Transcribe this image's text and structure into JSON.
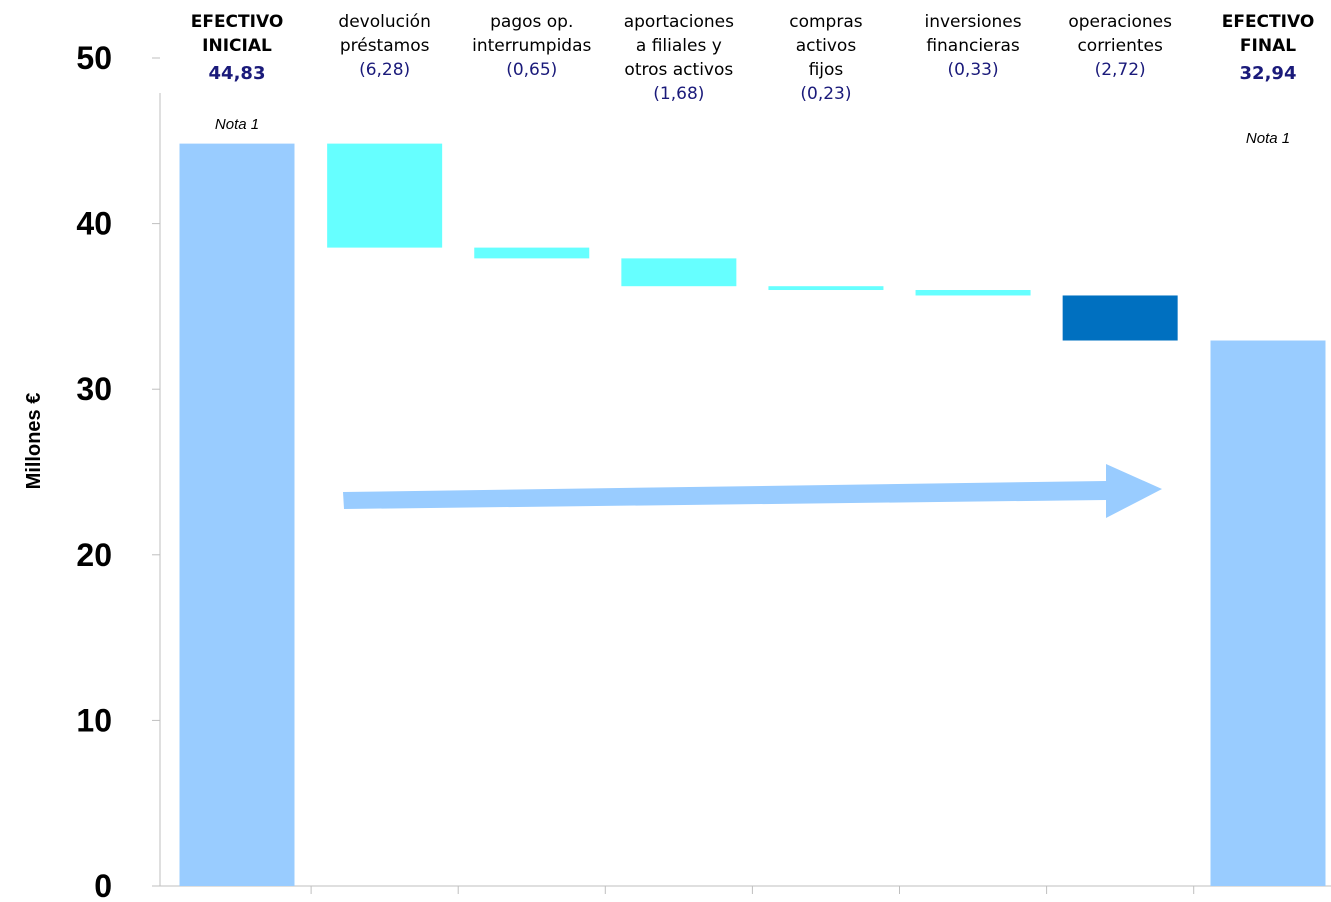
{
  "chart_data": {
    "type": "bar",
    "subtype": "waterfall",
    "ylabel": "Millones €",
    "ylim": [
      0,
      50
    ],
    "yticks": [
      "0",
      "10",
      "20",
      "30",
      "40",
      "50"
    ],
    "grid": false,
    "legend": "none",
    "categories": [
      {
        "lines": [
          "EFECTIVO",
          "INICIAL"
        ],
        "bold": true,
        "value_label": "44,83",
        "note": "Nota 1",
        "kind": "total",
        "value": 44.83
      },
      {
        "lines": [
          "devolución",
          "préstamos"
        ],
        "bold": false,
        "value_label": "(6,28)",
        "kind": "decrease",
        "value": -6.28
      },
      {
        "lines": [
          "pagos op.",
          "interrumpidas"
        ],
        "bold": false,
        "value_label": "(0,65)",
        "kind": "decrease",
        "value": -0.65
      },
      {
        "lines": [
          "aportaciones",
          "a filiales y",
          "otros activos"
        ],
        "bold": false,
        "value_label": "(1,68)",
        "kind": "decrease",
        "value": -1.68
      },
      {
        "lines": [
          "compras",
          "activos",
          "fijos"
        ],
        "bold": false,
        "value_label": "(0,23)",
        "kind": "decrease",
        "value": -0.23
      },
      {
        "lines": [
          "inversiones",
          "financieras"
        ],
        "bold": false,
        "value_label": "(0,33)",
        "kind": "decrease",
        "value": -0.33
      },
      {
        "lines": [
          "operaciones",
          "corrientes"
        ],
        "bold": false,
        "value_label": "(2,72)",
        "kind": "decrease",
        "value": -2.72,
        "highlight": true
      },
      {
        "lines": [
          "EFECTIVO",
          "FINAL"
        ],
        "bold": true,
        "value_label": "32,94",
        "note": "Nota 1",
        "kind": "total",
        "value": 32.94
      }
    ],
    "colors": {
      "total": "#99ccff",
      "decrease": "#66ffff",
      "highlight": "#0070c0",
      "arrow": "#99ccff",
      "axis": "#bfbfbf",
      "value_text": "#1a1a7a"
    }
  }
}
